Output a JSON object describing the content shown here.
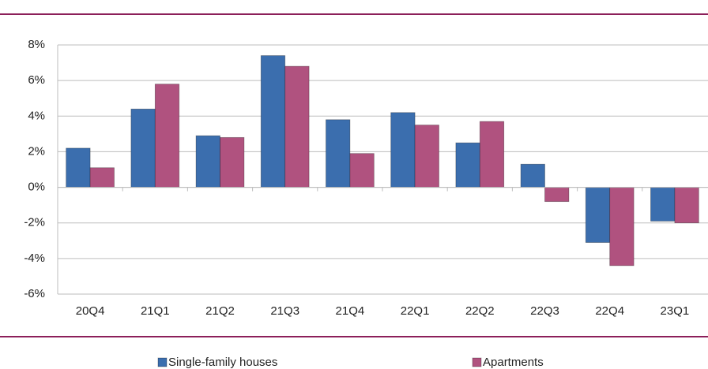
{
  "chart_data": {
    "type": "bar",
    "categories": [
      "20Q4",
      "21Q1",
      "21Q2",
      "21Q3",
      "21Q4",
      "22Q1",
      "22Q2",
      "22Q3",
      "22Q4",
      "23Q1"
    ],
    "series": [
      {
        "name": "Single-family houses",
        "color": "#3b6eae",
        "values": [
          2.2,
          4.4,
          2.9,
          7.4,
          3.8,
          4.2,
          2.5,
          1.3,
          -3.1,
          -1.9
        ]
      },
      {
        "name": "Apartments",
        "color": "#b0527f",
        "values": [
          1.1,
          5.8,
          2.8,
          6.8,
          1.9,
          3.5,
          3.7,
          -0.8,
          -4.4,
          -2.0
        ]
      }
    ],
    "ylim": [
      -6,
      8
    ],
    "yticks": [
      {
        "value": -6,
        "label": "-6%"
      },
      {
        "value": -4,
        "label": "-4%"
      },
      {
        "value": -2,
        "label": "-2%"
      },
      {
        "value": 0,
        "label": "0%"
      },
      {
        "value": 2,
        "label": "2%"
      },
      {
        "value": 4,
        "label": "4%"
      },
      {
        "value": 6,
        "label": "6%"
      },
      {
        "value": 8,
        "label": "8%"
      }
    ],
    "grid": true
  }
}
